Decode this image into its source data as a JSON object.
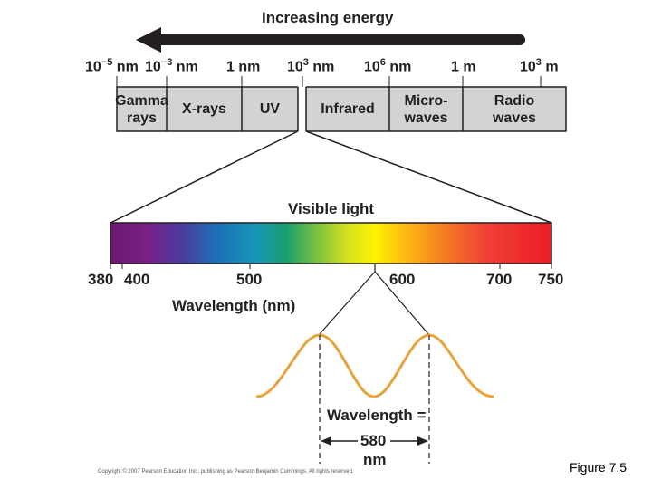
{
  "header": {
    "title": "Increasing energy"
  },
  "scale_labels": [
    {
      "base": "10",
      "exp": "−5",
      "unit": " nm"
    },
    {
      "base": "10",
      "exp": "−3",
      "unit": " nm"
    },
    {
      "base": "1",
      "exp": "",
      "unit": " nm"
    },
    {
      "base": "10",
      "exp": "3",
      "unit": " nm"
    },
    {
      "base": "10",
      "exp": "6",
      "unit": " nm"
    },
    {
      "base": "1",
      "exp": "",
      "unit": " m"
    },
    {
      "base": "10",
      "exp": "3",
      "unit": " m"
    }
  ],
  "bands": [
    {
      "line1": "Gamma",
      "line2": "rays"
    },
    {
      "line1": "X-rays",
      "line2": ""
    },
    {
      "line1": "UV",
      "line2": ""
    },
    {
      "line1": "Infrared",
      "line2": ""
    },
    {
      "line1": "Micro-",
      "line2": "waves"
    },
    {
      "line1": "Radio",
      "line2": "waves"
    }
  ],
  "visible": {
    "title": "Visible light",
    "ticks": [
      "380",
      "400",
      "500",
      "600",
      "700",
      "750"
    ],
    "axis_label": "Wavelength (nm)"
  },
  "wave": {
    "label": "Wavelength =",
    "value": "580",
    "unit": "nm"
  },
  "copyright": "Copyright © 2007 Pearson Education Inc., publishing as Pearson Benjamin Cummings. All rights reserved.",
  "figure_label": "Figure 7.5",
  "colors": {
    "band_fill": "#d1d3d4",
    "arrow": "#231f20",
    "wave": "#e8a33d"
  }
}
